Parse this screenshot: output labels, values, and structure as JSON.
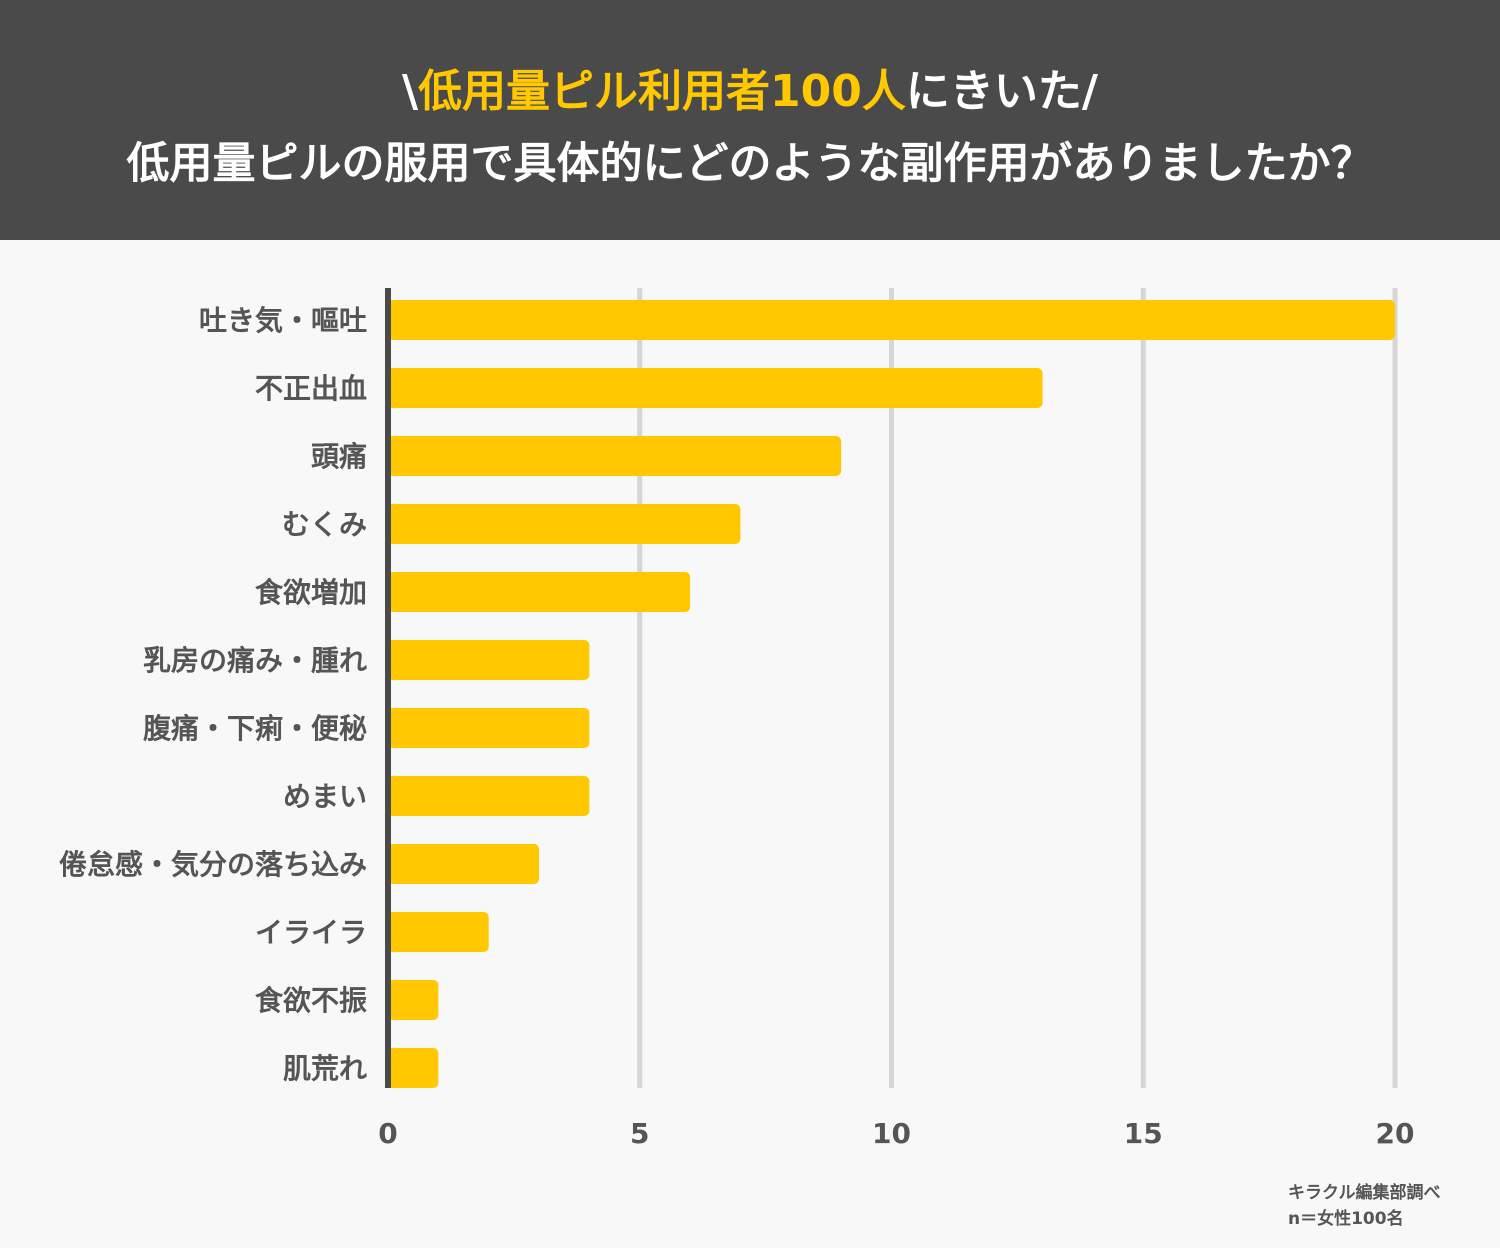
{
  "title": {
    "prefix": "\\",
    "highlight": "低用量ピル利用者100人",
    "suffix": "にきいた/",
    "question": "低用量ピルの服用で具体的にどのような副作用がありましたか？"
  },
  "colors": {
    "header_bg": "#4a4a4a",
    "accent": "#ffc800",
    "bar": "#ffc800",
    "grid": "#d6d6d6",
    "axis": "#4a4a4a",
    "text": "#555555",
    "background": "#f8f8f8"
  },
  "chart_data": {
    "type": "bar",
    "orientation": "horizontal",
    "categories": [
      "吐き気・嘔吐",
      "不正出血",
      "頭痛",
      "むくみ",
      "食欲増加",
      "乳房の痛み・腫れ",
      "腹痛・下痢・便秘",
      "めまい",
      "倦怠感・気分の落ち込み",
      "イライラ",
      "食欲不振",
      "肌荒れ"
    ],
    "values": [
      20,
      13,
      9,
      7,
      6,
      4,
      4,
      4,
      3,
      2,
      1,
      1
    ],
    "xlim": [
      0,
      20
    ],
    "xticks": [
      "0",
      "5",
      "10",
      "15",
      "20"
    ],
    "xtick_values": [
      0,
      5,
      10,
      15,
      20
    ],
    "grid": true,
    "title": "低用量ピルの服用で具体的にどのような副作用がありましたか？",
    "xlabel": "",
    "ylabel": ""
  },
  "source": {
    "line1": "キラクル編集部調べ",
    "line2": "n＝女性100名"
  }
}
